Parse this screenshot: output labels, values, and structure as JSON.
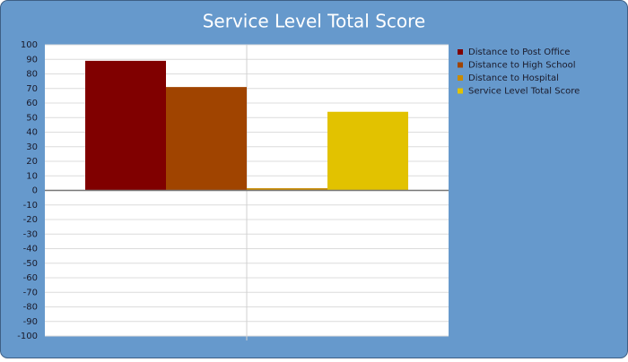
{
  "chart_data": {
    "type": "bar",
    "title": "Service Level Total Score",
    "categories": [
      null
    ],
    "series": [
      {
        "name": "Distance to Post Office",
        "color": "#800000",
        "values": [
          89
        ]
      },
      {
        "name": "Distance to High School",
        "color": "#a04400",
        "values": [
          71
        ]
      },
      {
        "name": "Distance to Hospital",
        "color": "#c88a00",
        "values": [
          1.5
        ]
      },
      {
        "name": "Service Level Total Score",
        "color": "#e2c200",
        "values": [
          54
        ]
      }
    ],
    "ylim": [
      -100,
      100
    ],
    "yticks": [
      -100,
      -90,
      -80,
      -70,
      -60,
      -50,
      -40,
      -30,
      -20,
      -10,
      0,
      10,
      20,
      30,
      40,
      50,
      60,
      70,
      80,
      90,
      100
    ],
    "grid": true,
    "legend": "right"
  }
}
